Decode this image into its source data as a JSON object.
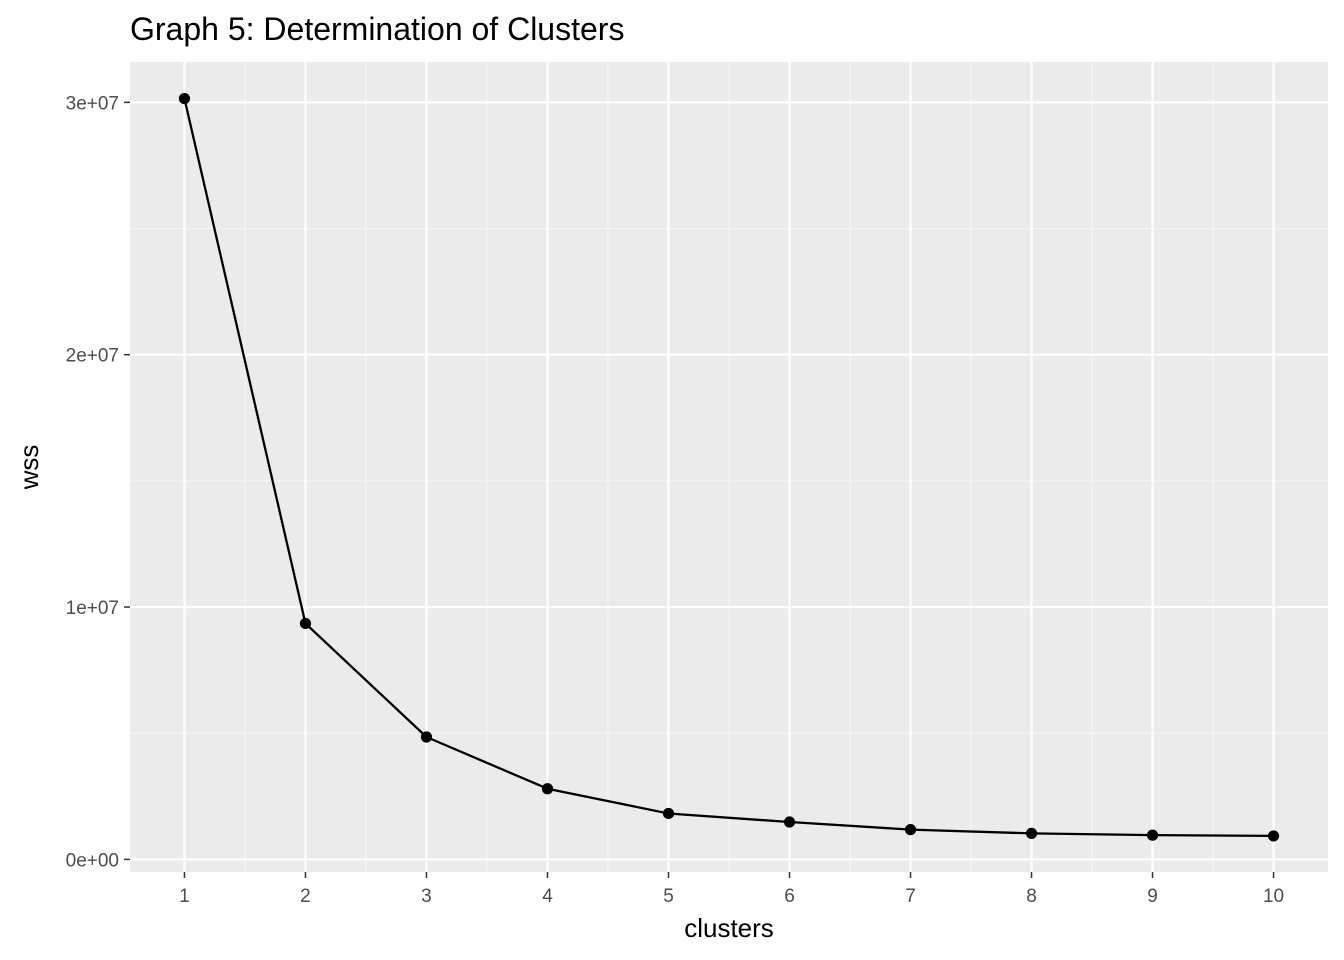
{
  "chart_data": {
    "type": "line",
    "title": "Graph 5: Determination of Clusters",
    "xlabel": "clusters",
    "ylabel": "wss",
    "x": [
      1,
      2,
      3,
      4,
      5,
      6,
      7,
      8,
      9,
      10
    ],
    "series": [
      {
        "values": [
          30150000,
          9350000,
          4850000,
          2800000,
          1820000,
          1480000,
          1180000,
          1030000,
          960000,
          930000
        ]
      }
    ],
    "x_ticks": [
      1,
      2,
      3,
      4,
      5,
      6,
      7,
      8,
      9,
      10
    ],
    "x_tick_labels": [
      "1",
      "2",
      "3",
      "4",
      "5",
      "6",
      "7",
      "8",
      "9",
      "10"
    ],
    "y_ticks": [
      0,
      10000000,
      20000000,
      30000000
    ],
    "y_tick_labels": [
      "0e+00",
      "1e+07",
      "2e+07",
      "3e+07"
    ],
    "xlim": [
      0.55,
      10.45
    ],
    "ylim": [
      -500000,
      31600000
    ],
    "grid": true,
    "legend": "none",
    "colors": {
      "panel_background": "#ebebeb",
      "grid_major": "#ffffff",
      "grid_minor": "#f5f5f5",
      "line": "#000000",
      "point": "#000000",
      "tick_text": "#4d4d4d",
      "tick_mark": "#333333"
    }
  }
}
